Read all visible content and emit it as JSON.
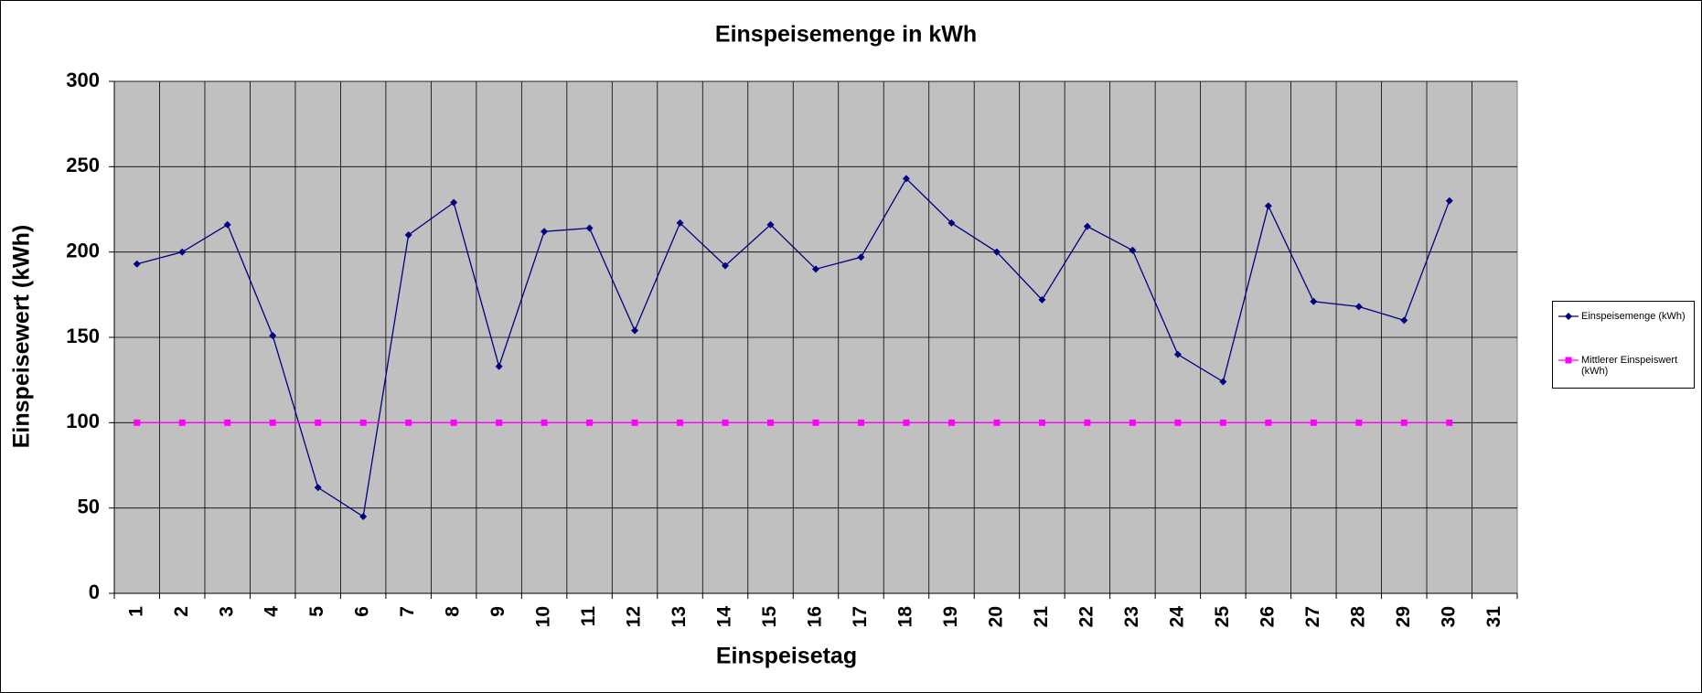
{
  "chart_data": {
    "type": "line",
    "title": "Einspeisemenge in kWh",
    "x_label": "Einspeisetag",
    "y_label": "Einspeisewert  (kWh)",
    "categories": [
      "1",
      "2",
      "3",
      "4",
      "5",
      "6",
      "7",
      "8",
      "9",
      "10",
      "11",
      "12",
      "13",
      "14",
      "15",
      "16",
      "17",
      "18",
      "19",
      "20",
      "21",
      "22",
      "23",
      "24",
      "25",
      "26",
      "27",
      "28",
      "29",
      "30",
      "31"
    ],
    "series": [
      {
        "name": "Einspeisemenge (kWh)",
        "color": "#000080",
        "marker": "diamond",
        "values": [
          193,
          200,
          216,
          151,
          62,
          45,
          210,
          229,
          133,
          212,
          214,
          154,
          217,
          192,
          216,
          190,
          197,
          243,
          217,
          200,
          172,
          215,
          201,
          140,
          124,
          227,
          171,
          168,
          160,
          230,
          null
        ]
      },
      {
        "name": "Mittlerer Einspeiswert (kWh)",
        "color": "#ff00ff",
        "marker": "square",
        "values": [
          100,
          100,
          100,
          100,
          100,
          100,
          100,
          100,
          100,
          100,
          100,
          100,
          100,
          100,
          100,
          100,
          100,
          100,
          100,
          100,
          100,
          100,
          100,
          100,
          100,
          100,
          100,
          100,
          100,
          100,
          null
        ]
      }
    ],
    "ylim": [
      0,
      300
    ],
    "yticks": [
      0,
      50,
      100,
      150,
      200,
      250,
      300
    ],
    "grid": true,
    "plot_background": "#c0c0c0",
    "legend": "right"
  }
}
